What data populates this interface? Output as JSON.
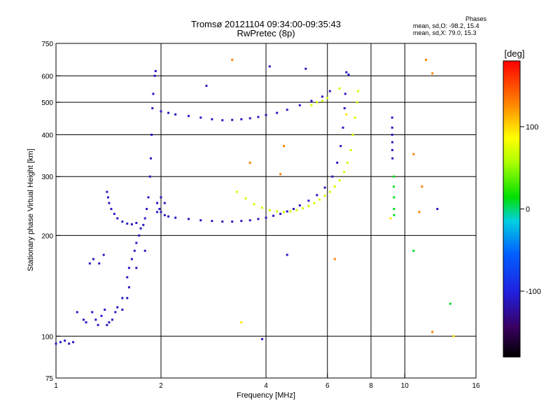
{
  "header": {
    "title": "Tromsø 20121104 09:34:00-09:35:43",
    "subtitle": "RwPretec (8p)"
  },
  "stats": {
    "heading": "Phases",
    "row_o": "mean, sd,O: -98.2, 15.4",
    "row_x": "mean, sd,X:  79.0, 15.3"
  },
  "colorbar": {
    "label": "[deg]",
    "ticks": [
      "100",
      "0",
      "-100"
    ],
    "tick_values": [
      100,
      0,
      -100
    ],
    "range": [
      -180,
      180
    ]
  },
  "chart_data": {
    "type": "scatter",
    "xlabel": "Frequency [MHz]",
    "ylabel": "Stationary phase Virtual Height [km]",
    "xscale": "log",
    "yscale": "log",
    "xlim": [
      1,
      16
    ],
    "ylim": [
      75,
      750
    ],
    "x_ticks": [
      1,
      2,
      4,
      6,
      8,
      10,
      16
    ],
    "y_ticks": [
      75,
      100,
      200,
      300,
      400,
      500,
      600,
      750
    ],
    "grid_x": [
      2,
      4,
      6,
      8,
      10
    ],
    "grid_y": [
      100,
      200,
      300,
      400,
      500,
      600
    ],
    "series": [
      {
        "phase": -110,
        "points": [
          [
            1.0,
            95
          ],
          [
            1.03,
            96
          ],
          [
            1.06,
            97
          ],
          [
            1.09,
            95
          ],
          [
            1.12,
            96
          ],
          [
            1.25,
            165
          ],
          [
            1.28,
            170
          ],
          [
            1.33,
            165
          ],
          [
            1.37,
            175
          ],
          [
            1.27,
            118
          ],
          [
            1.3,
            112
          ],
          [
            1.32,
            108
          ],
          [
            1.35,
            115
          ],
          [
            1.38,
            120
          ],
          [
            1.42,
            110
          ],
          [
            1.45,
            112
          ],
          [
            1.48,
            118
          ],
          [
            1.5,
            122
          ],
          [
            1.55,
            120
          ],
          [
            1.6,
            130
          ],
          [
            1.4,
            270
          ],
          [
            1.41,
            260
          ],
          [
            1.42,
            250
          ],
          [
            1.44,
            240
          ],
          [
            1.47,
            232
          ],
          [
            1.5,
            225
          ],
          [
            1.55,
            220
          ],
          [
            1.6,
            217
          ],
          [
            1.65,
            216
          ],
          [
            1.7,
            218
          ],
          [
            1.6,
            150
          ],
          [
            1.62,
            160
          ],
          [
            1.65,
            170
          ],
          [
            1.68,
            180
          ],
          [
            1.7,
            190
          ],
          [
            1.73,
            200
          ],
          [
            1.75,
            210
          ],
          [
            1.78,
            215
          ],
          [
            1.8,
            225
          ],
          [
            1.82,
            240
          ],
          [
            1.84,
            260
          ],
          [
            1.86,
            300
          ],
          [
            1.87,
            340
          ],
          [
            1.88,
            400
          ],
          [
            1.89,
            480
          ],
          [
            1.9,
            530
          ],
          [
            1.92,
            600
          ],
          [
            1.93,
            620
          ],
          [
            1.95,
            250
          ],
          [
            1.98,
            240
          ],
          [
            2.0,
            235
          ],
          [
            2.05,
            230
          ],
          [
            2.1,
            228
          ],
          [
            2.2,
            226
          ],
          [
            2.4,
            224
          ],
          [
            2.6,
            222
          ],
          [
            2.8,
            221
          ],
          [
            3.0,
            220
          ],
          [
            3.2,
            220
          ],
          [
            3.4,
            221
          ],
          [
            3.6,
            222
          ],
          [
            3.8,
            224
          ],
          [
            4.0,
            226
          ],
          [
            4.2,
            229
          ],
          [
            4.4,
            232
          ],
          [
            4.6,
            236
          ],
          [
            4.8,
            240
          ],
          [
            5.0,
            246
          ],
          [
            5.3,
            254
          ],
          [
            5.6,
            264
          ],
          [
            5.9,
            278
          ],
          [
            6.2,
            300
          ],
          [
            6.4,
            330
          ],
          [
            6.55,
            370
          ],
          [
            6.65,
            420
          ],
          [
            6.72,
            480
          ],
          [
            6.75,
            530
          ],
          [
            2.0,
            470
          ],
          [
            2.1,
            465
          ],
          [
            2.2,
            460
          ],
          [
            2.4,
            455
          ],
          [
            2.6,
            450
          ],
          [
            2.8,
            445
          ],
          [
            3.0,
            442
          ],
          [
            3.2,
            443
          ],
          [
            3.4,
            445
          ],
          [
            3.6,
            448
          ],
          [
            3.8,
            452
          ],
          [
            4.0,
            458
          ],
          [
            4.3,
            465
          ],
          [
            4.6,
            475
          ],
          [
            5.0,
            490
          ],
          [
            5.4,
            505
          ],
          [
            5.8,
            520
          ],
          [
            6.1,
            540
          ],
          [
            1.15,
            118
          ],
          [
            1.2,
            112
          ],
          [
            1.22,
            110
          ],
          [
            1.4,
            108
          ],
          [
            1.55,
            130
          ],
          [
            1.62,
            140
          ],
          [
            1.7,
            160
          ],
          [
            1.8,
            180
          ],
          [
            9.2,
            450
          ],
          [
            9.2,
            420
          ],
          [
            9.2,
            400
          ],
          [
            9.21,
            380
          ],
          [
            9.21,
            360
          ],
          [
            9.22,
            340
          ],
          [
            6.8,
            615
          ],
          [
            6.9,
            605
          ],
          [
            5.2,
            630
          ],
          [
            4.1,
            640
          ],
          [
            2.7,
            560
          ],
          [
            12.4,
            240
          ],
          [
            3.9,
            98
          ],
          [
            4.6,
            175
          ],
          [
            1.95,
            235
          ],
          [
            2.0,
            260
          ],
          [
            2.05,
            250
          ]
        ]
      },
      {
        "phase": 70,
        "points": [
          [
            3.3,
            270
          ],
          [
            3.5,
            258
          ],
          [
            3.7,
            248
          ],
          [
            3.9,
            242
          ],
          [
            4.1,
            238
          ],
          [
            4.3,
            236
          ],
          [
            4.5,
            235
          ],
          [
            4.7,
            236
          ],
          [
            4.9,
            238
          ],
          [
            5.1,
            241
          ],
          [
            5.3,
            245
          ],
          [
            5.5,
            250
          ],
          [
            5.7,
            256
          ],
          [
            5.9,
            263
          ],
          [
            6.1,
            270
          ],
          [
            6.3,
            280
          ],
          [
            6.5,
            292
          ],
          [
            6.7,
            310
          ],
          [
            6.85,
            330
          ],
          [
            7.0,
            360
          ],
          [
            7.1,
            400
          ],
          [
            7.2,
            450
          ],
          [
            7.3,
            500
          ],
          [
            7.35,
            540
          ],
          [
            5.4,
            490
          ],
          [
            5.6,
            500
          ],
          [
            5.8,
            505
          ],
          [
            6.0,
            515
          ],
          [
            6.5,
            550
          ]
        ]
      },
      {
        "phase": 10,
        "points": [
          [
            9.3,
            300
          ],
          [
            9.3,
            280
          ],
          [
            9.31,
            260
          ],
          [
            9.31,
            240
          ],
          [
            9.32,
            230
          ],
          [
            10.6,
            180
          ],
          [
            13.5,
            125
          ]
        ]
      },
      {
        "phase": 130,
        "points": [
          [
            3.2,
            670
          ],
          [
            11.5,
            670
          ],
          [
            12,
            610
          ],
          [
            11.2,
            280
          ],
          [
            10.6,
            350
          ],
          [
            4.5,
            370
          ],
          [
            3.6,
            330
          ],
          [
            4.4,
            305
          ],
          [
            11,
            235
          ],
          [
            12,
            103
          ],
          [
            6.3,
            170
          ]
        ]
      },
      {
        "phase": 95,
        "points": [
          [
            3.4,
            110
          ],
          [
            13.8,
            100
          ],
          [
            9.1,
            225
          ],
          [
            6.8,
            460
          ]
        ]
      }
    ]
  }
}
